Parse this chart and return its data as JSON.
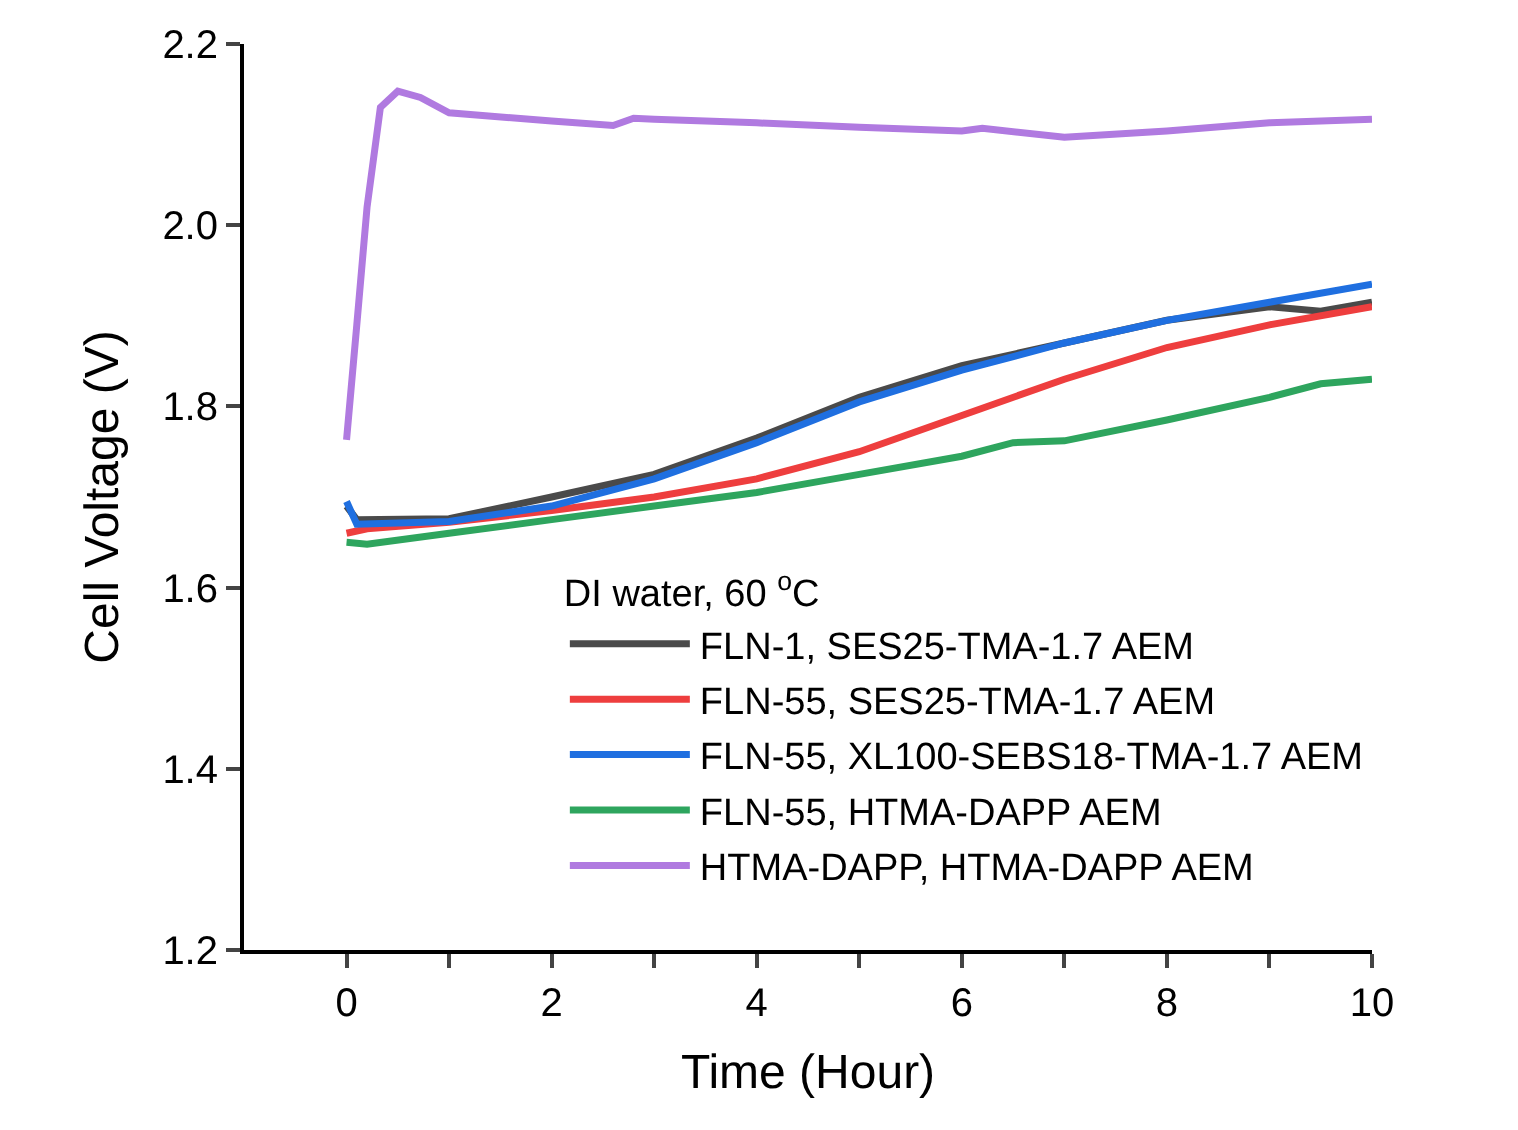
{
  "chart_data": {
    "type": "line",
    "xlabel": "Time (Hour)",
    "ylabel": "Cell Voltage (V)",
    "legend_title": "DI water, 60 $^{o}$C",
    "xlim": [
      -1,
      10
    ],
    "xticks": [
      0,
      {
        "value": 1,
        "label": null
      },
      2,
      {
        "value": 3,
        "label": null
      },
      4,
      {
        "value": 5,
        "label": null
      },
      6,
      {
        "value": 7,
        "label": null
      },
      8,
      {
        "value": 9,
        "label": null
      },
      10
    ],
    "ylim": [
      1.2,
      2.2
    ],
    "yticks": [
      1.2,
      1.4,
      1.6,
      1.8,
      {
        "value": 2,
        "label": "2.0"
      },
      2.2
    ],
    "legend": "bottom right",
    "marker": "none",
    "line_style": "solid",
    "series": [
      {
        "name": "FLN-1, SES25-TMA-1.7 AEM",
        "color": "#4a4a4a",
        "x": [
          0,
          0.1,
          1,
          2,
          3,
          4,
          5,
          6,
          7,
          8,
          9,
          9.5,
          10
        ],
        "values": [
          1.69,
          1.675,
          1.676,
          1.7,
          1.725,
          1.765,
          1.81,
          1.845,
          1.87,
          1.895,
          1.91,
          1.905,
          1.915
        ]
      },
      {
        "name": "FLN-55, SES25-TMA-1.7 AEM",
        "color": "#ee3e3e",
        "x": [
          0,
          0.2,
          1,
          2,
          3,
          4,
          5,
          6,
          7,
          8,
          9,
          10
        ],
        "values": [
          1.66,
          1.665,
          1.672,
          1.685,
          1.7,
          1.72,
          1.75,
          1.79,
          1.83,
          1.865,
          1.89,
          1.91
        ]
      },
      {
        "name": "FLN-55, XL100-SEBS18-TMA-1.7 AEM",
        "color": "#1f6fe0",
        "x": [
          0,
          0.1,
          1,
          2,
          3,
          4,
          5,
          6,
          7,
          8,
          9,
          10
        ],
        "values": [
          1.695,
          1.67,
          1.673,
          1.69,
          1.72,
          1.76,
          1.805,
          1.84,
          1.87,
          1.895,
          1.915,
          1.935
        ]
      },
      {
        "name": "FLN-55, HTMA-DAPP AEM",
        "color": "#2ea55e",
        "x": [
          0,
          0.2,
          1,
          2,
          3,
          4,
          5,
          6,
          6.5,
          7,
          8,
          9,
          9.5,
          10
        ],
        "values": [
          1.65,
          1.648,
          1.66,
          1.675,
          1.69,
          1.705,
          1.725,
          1.745,
          1.76,
          1.762,
          1.785,
          1.81,
          1.825,
          1.83
        ]
      },
      {
        "name": "HTMA-DAPP, HTMA-DAPP AEM",
        "color": "#b07ae0",
        "x": [
          0,
          0.1,
          0.2,
          0.33,
          0.5,
          0.72,
          1,
          2,
          2.6,
          2.8,
          3,
          4,
          5,
          6,
          6.2,
          7,
          8,
          9,
          10
        ],
        "values": [
          1.763,
          1.89,
          2.02,
          2.13,
          2.148,
          2.141,
          2.124,
          2.115,
          2.11,
          2.118,
          2.117,
          2.113,
          2.108,
          2.104,
          2.107,
          2.097,
          2.104,
          2.113,
          2.117
        ]
      }
    ]
  }
}
